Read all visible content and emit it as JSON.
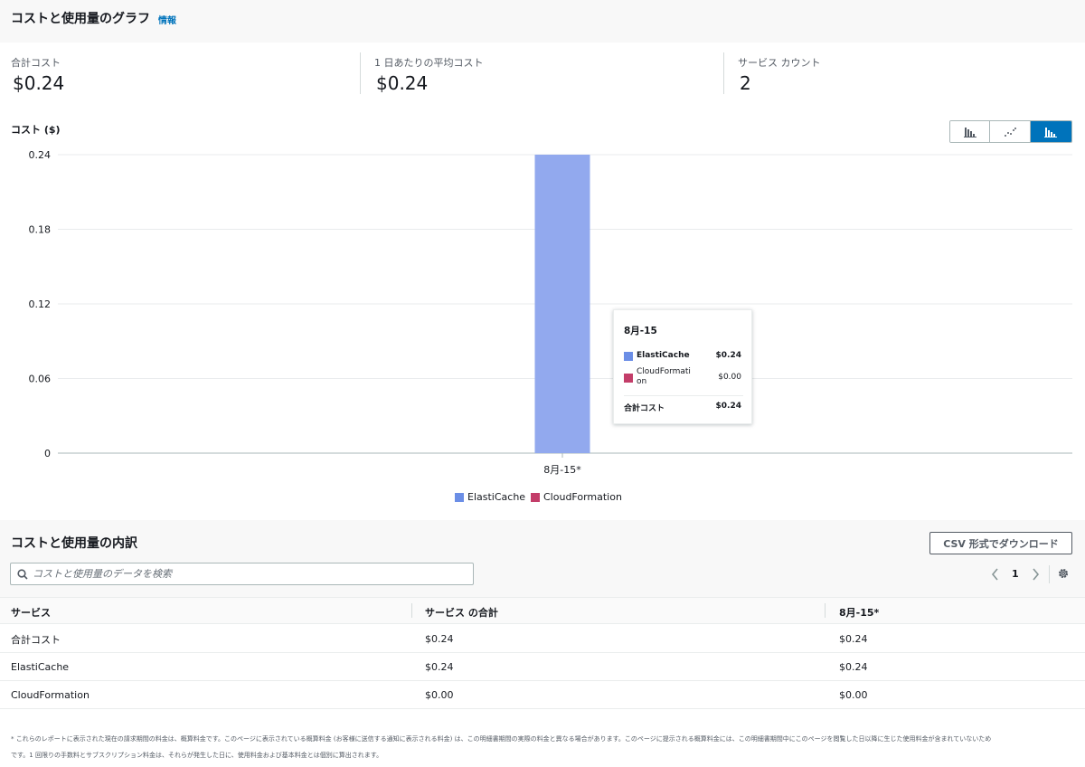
{
  "header": {
    "title": "コストと使用量のグラフ",
    "info_link": "情報"
  },
  "summary": [
    {
      "label": "合計コスト",
      "value": "$0.24"
    },
    {
      "label": "1 日あたりの平均コスト",
      "value": "$0.24"
    },
    {
      "label": "サービス カウント",
      "value": "2"
    }
  ],
  "chart_section": {
    "title": "コスト ($)",
    "chart_type_buttons": [
      {
        "icon": "bar-chart-icon",
        "active": false
      },
      {
        "icon": "line-chart-icon",
        "active": false
      },
      {
        "icon": "stacked-bar-chart-icon",
        "active": true
      }
    ]
  },
  "chart_data": {
    "type": "bar",
    "stacked": true,
    "categories": [
      "8月-15*"
    ],
    "series": [
      {
        "name": "ElastiCache",
        "values": [
          0.24
        ],
        "color": "#92a9ee"
      },
      {
        "name": "CloudFormation",
        "values": [
          0.0
        ],
        "color": "#c33d69"
      }
    ],
    "y_ticks": [
      "0",
      "0.06",
      "0.12",
      "0.18",
      "0.24"
    ],
    "ylim": [
      0,
      0.24
    ],
    "grid": true,
    "legend_position": "bottom"
  },
  "tooltip": {
    "date": "8月-15",
    "rows": [
      {
        "name": "ElastiCache",
        "value": "$0.24",
        "color": "#6b8ee6",
        "bold": true
      },
      {
        "name": "CloudFormation",
        "value": "$0.00",
        "color": "#c33d69",
        "bold": false
      }
    ],
    "total_label": "合計コスト",
    "total_value": "$0.24"
  },
  "legend": [
    {
      "name": "ElastiCache",
      "color": "#6b8ee6"
    },
    {
      "name": "CloudFormation",
      "color": "#c33d69"
    }
  ],
  "breakdown": {
    "title": "コストと使用量の内訳",
    "csv_button": "CSV 形式でダウンロード",
    "search_placeholder": "コストと使用量のデータを検索",
    "page": "1",
    "columns": [
      "サービス",
      "サービス の合計",
      "8月-15*"
    ],
    "rows": [
      [
        "合計コスト",
        "$0.24",
        "$0.24"
      ],
      [
        "ElastiCache",
        "$0.24",
        "$0.24"
      ],
      [
        "CloudFormation",
        "$0.00",
        "$0.00"
      ]
    ]
  },
  "footnote": [
    "* これらのレポートに表示された現在の請求期間の料金は、概算料金です。このページに表示されている概算料金 (お客様に送信する通知に表示される料金) は、この明細書期間の実際の料金と異なる場合があります。このページに提示される概算料金には、この明細書期間中にこのページを閲覧した日以降に生じた使用料金が含まれていないため",
    "です。1 回限りの手数料とサブスクリプション料金は、それらが発生した日に、使用料金および基本料金とは個別に算出されます。"
  ]
}
